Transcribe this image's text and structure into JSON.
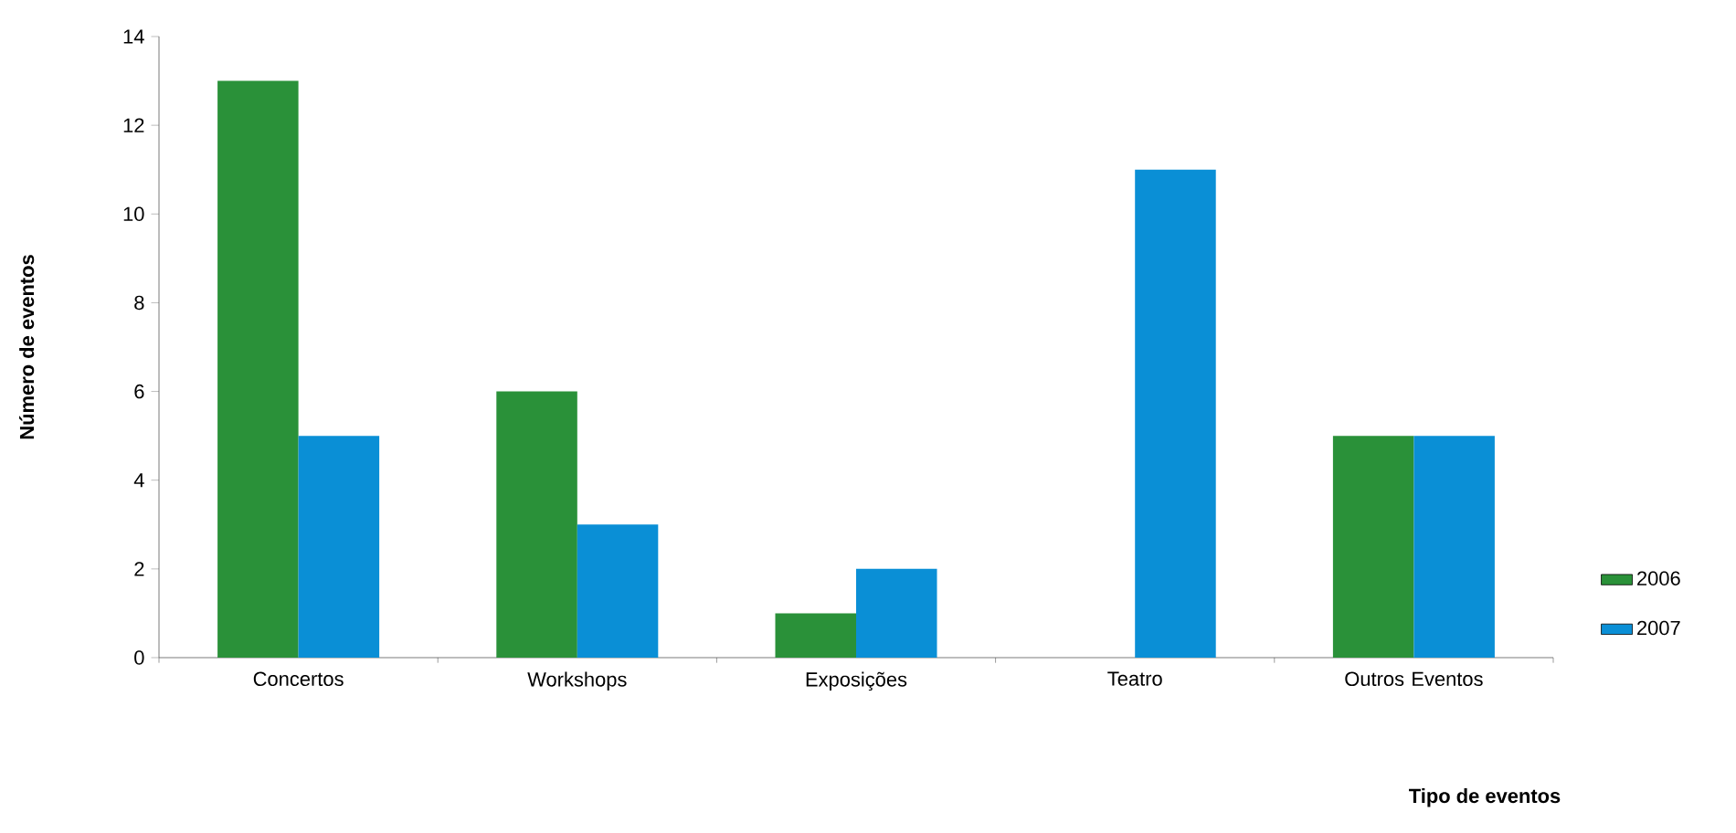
{
  "chart_data": {
    "type": "bar",
    "xlabel": "Tipo de eventos",
    "ylabel": "Número de eventos",
    "categories": [
      "Concertos",
      "Workshops",
      "Exposições",
      "Teatro",
      "Outros Eventos"
    ],
    "series": [
      {
        "name": "2006",
        "color": "#2a9139",
        "values": [
          13,
          6,
          1,
          0,
          5
        ]
      },
      {
        "name": "2007",
        "color": "#0a8fd6",
        "values": [
          5,
          3,
          2,
          11,
          5
        ]
      }
    ],
    "ylim": [
      0,
      14
    ],
    "yticks": [
      0,
      2,
      4,
      6,
      8,
      10,
      12,
      14
    ],
    "grid": false,
    "legend": "right"
  }
}
